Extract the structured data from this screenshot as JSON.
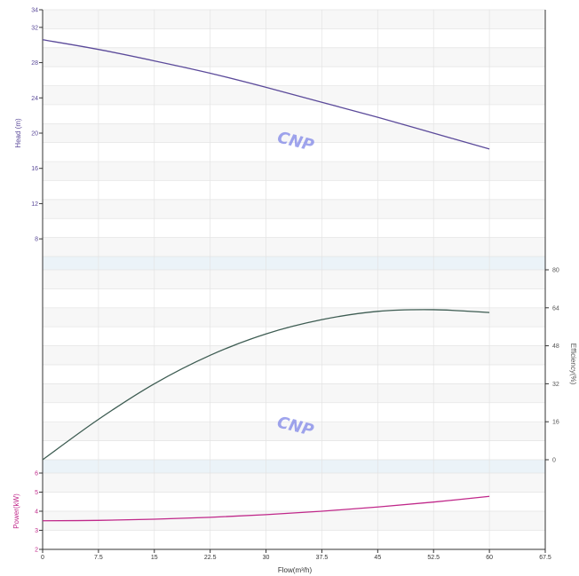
{
  "chart_data": {
    "type": "line",
    "watermark": "CNP",
    "x_axis": {
      "label": "Flow(m³/h)",
      "range": [
        0,
        67.5
      ],
      "ticks": [
        0,
        7.5,
        15,
        22.5,
        30,
        37.5,
        45,
        52.5,
        60,
        67.5
      ]
    },
    "head": {
      "axis_label": "Head (m)",
      "range": [
        6,
        34
      ],
      "tick_labels": [
        8,
        12,
        16,
        20,
        24,
        28,
        32,
        34
      ],
      "color": "#5b4a9a",
      "x": [
        0,
        7.5,
        15,
        22.5,
        30,
        37.5,
        45,
        52.5,
        60
      ],
      "y": [
        30.6,
        29.5,
        28.2,
        26.8,
        25.2,
        23.5,
        21.8,
        20.0,
        18.2
      ]
    },
    "efficiency": {
      "axis_label": "Efficiency(%)",
      "range": [
        0,
        80
      ],
      "tick_labels": [
        0,
        16,
        32,
        48,
        64,
        80
      ],
      "color": "#3d5c52",
      "x": [
        0,
        7.5,
        15,
        22.5,
        30,
        37.5,
        45,
        52.5,
        60
      ],
      "y": [
        0,
        17,
        32,
        44,
        53,
        59,
        62.5,
        63.2,
        62
      ]
    },
    "power": {
      "axis_label": "Power(kW)",
      "range": [
        2,
        6
      ],
      "tick_labels": [
        2,
        3,
        4,
        5,
        6
      ],
      "color": "#c0288a",
      "x": [
        0,
        7.5,
        15,
        22.5,
        30,
        37.5,
        45,
        52.5,
        60
      ],
      "y": [
        3.5,
        3.52,
        3.58,
        3.68,
        3.82,
        4.0,
        4.22,
        4.48,
        4.78
      ]
    },
    "grid": true
  }
}
